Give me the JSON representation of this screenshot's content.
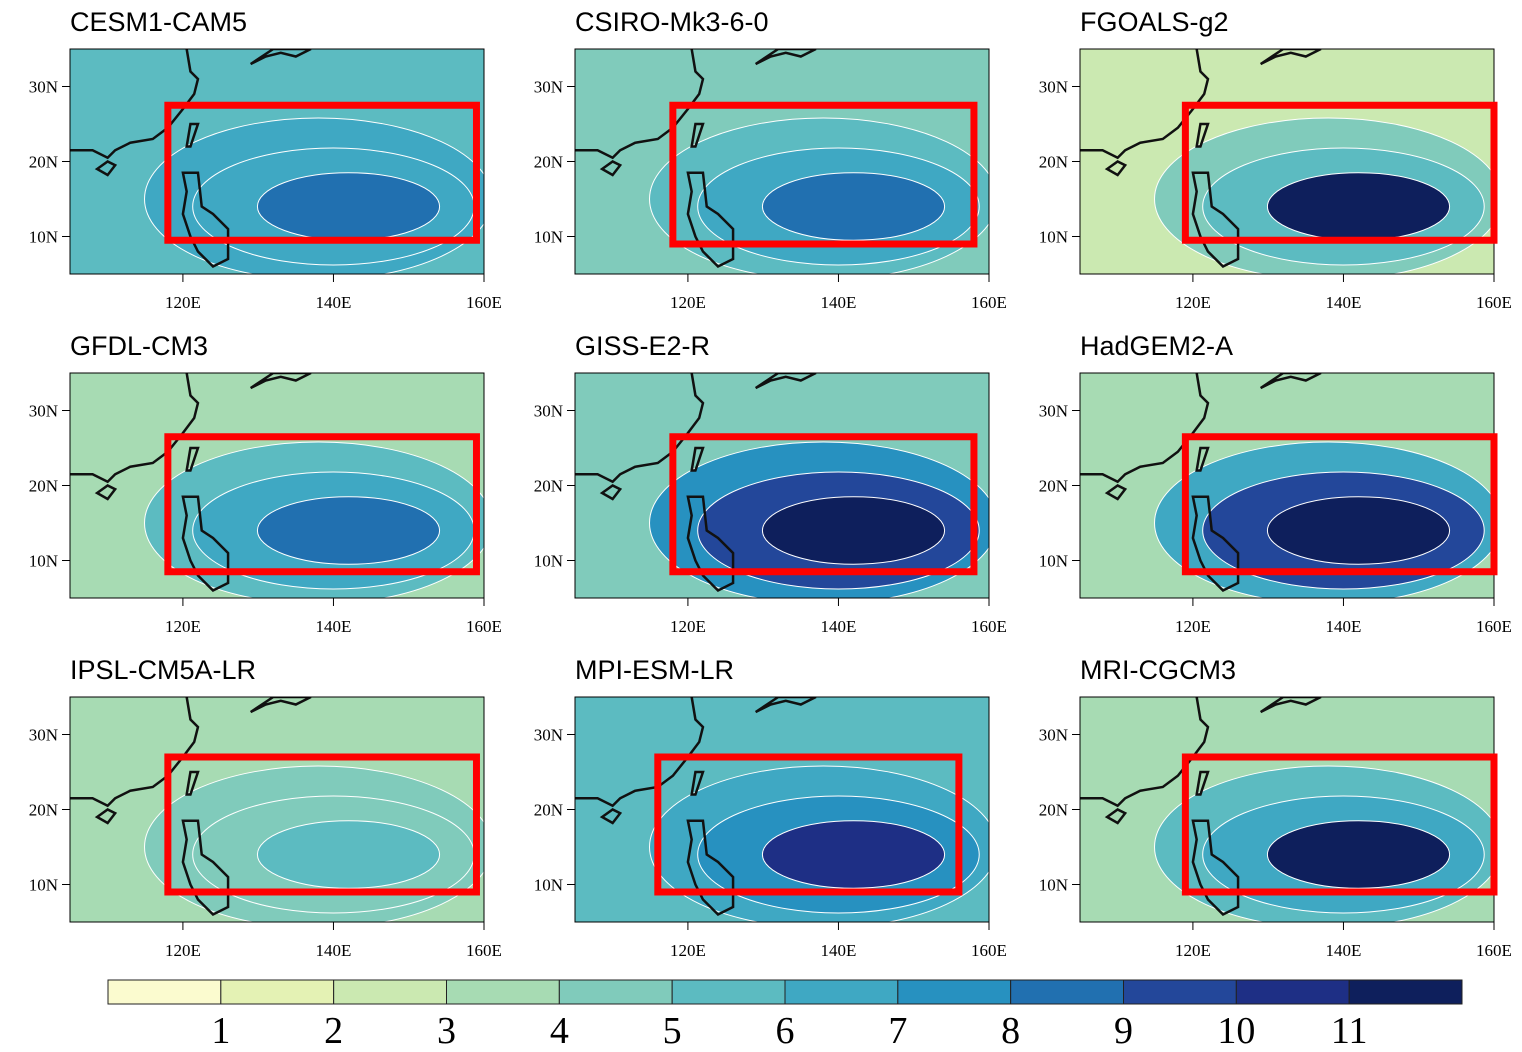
{
  "panels": [
    {
      "title": "CESM1-CAM5",
      "box": [
        118,
        159,
        9.5,
        27.5
      ]
    },
    {
      "title": "CSIRO-Mk3-6-0",
      "box": [
        118,
        158,
        9,
        27.5
      ]
    },
    {
      "title": "FGOALS-g2",
      "box": [
        119,
        160,
        9.5,
        27.5
      ]
    },
    {
      "title": "GFDL-CM3",
      "box": [
        118,
        159,
        8.5,
        26.5
      ]
    },
    {
      "title": "GISS-E2-R",
      "box": [
        118,
        158,
        8.5,
        26.5
      ]
    },
    {
      "title": "HadGEM2-A",
      "box": [
        119,
        160,
        8.5,
        26.5
      ]
    },
    {
      "title": "IPSL-CM5A-LR",
      "box": [
        118,
        159,
        9,
        27
      ]
    },
    {
      "title": "MPI-ESM-LR",
      "box": [
        116,
        156,
        9,
        27
      ]
    },
    {
      "title": "MRI-CGCM3",
      "box": [
        119,
        160,
        9,
        27
      ]
    }
  ],
  "lon_range": [
    105,
    160
  ],
  "lat_range": [
    5,
    35
  ],
  "lon_ticks": [
    {
      "value": 120,
      "label": "120E"
    },
    {
      "value": 140,
      "label": "140E"
    },
    {
      "value": 160,
      "label": "160E"
    }
  ],
  "lat_ticks": [
    {
      "value": 10,
      "label": "10N"
    },
    {
      "value": 20,
      "label": "20N"
    },
    {
      "value": 30,
      "label": "30N"
    }
  ],
  "colorbar": {
    "levels": [
      1,
      2,
      3,
      4,
      5,
      6,
      7,
      8,
      9,
      10,
      11
    ],
    "colors": [
      "#fbfbcf",
      "#e4f2b4",
      "#cbe9b1",
      "#a7dbb3",
      "#80cbbb",
      "#5cbbc1",
      "#3fa8c3",
      "#2791c0",
      "#2170b0",
      "#23479a",
      "#1e2f85",
      "#0e1f5c"
    ]
  },
  "box_color": "#ff0000"
}
